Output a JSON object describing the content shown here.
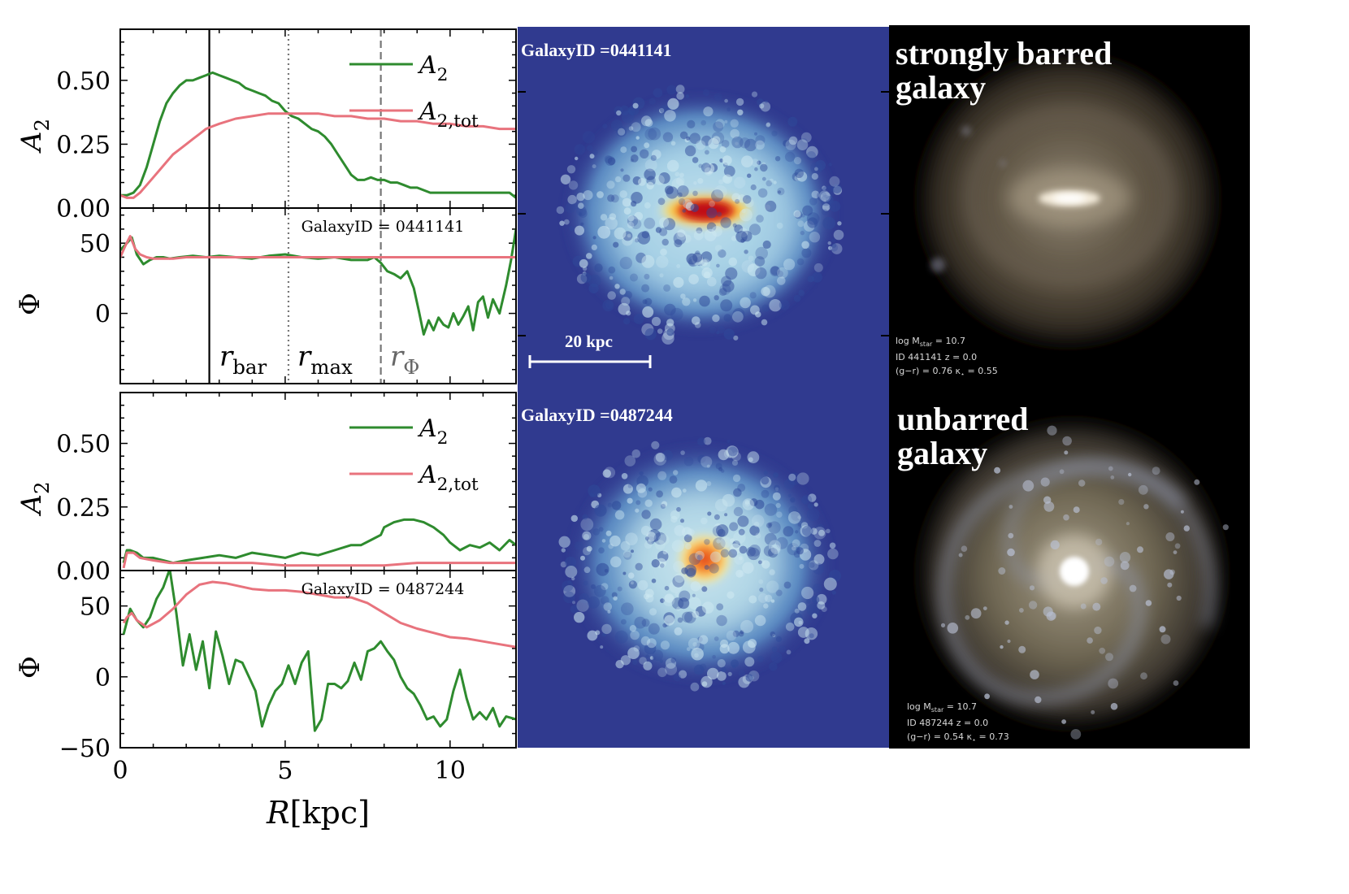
{
  "chart_data": [
    {
      "type": "line",
      "panel": "top galaxy, A2 vs R",
      "xlabel": "R[kpc]",
      "ylabel": "A_2",
      "xlim": [
        0,
        12
      ],
      "ylim": [
        0,
        0.7
      ],
      "yticks": [
        "0.00",
        "0.25",
        "0.50"
      ],
      "legend": "top-right",
      "series": [
        {
          "name": "A_2",
          "color": "#2e8b2e",
          "x": [
            0,
            0.2,
            0.4,
            0.6,
            0.8,
            1.0,
            1.2,
            1.4,
            1.6,
            1.8,
            2.0,
            2.2,
            2.4,
            2.6,
            2.8,
            3.0,
            3.2,
            3.4,
            3.6,
            3.8,
            4.0,
            4.2,
            4.4,
            4.6,
            4.8,
            5.0,
            5.2,
            5.4,
            5.6,
            5.8,
            6.0,
            6.2,
            6.4,
            6.6,
            6.8,
            7.0,
            7.2,
            7.4,
            7.6,
            7.8,
            8.0,
            8.2,
            8.4,
            8.6,
            8.8,
            9.0,
            9.2,
            9.4,
            9.6,
            9.8,
            10.0,
            10.2,
            10.4,
            10.6,
            10.8,
            11.0,
            11.2,
            11.4,
            11.6,
            11.8,
            12.0
          ],
          "y": [
            0.05,
            0.05,
            0.06,
            0.09,
            0.16,
            0.25,
            0.34,
            0.41,
            0.45,
            0.48,
            0.5,
            0.5,
            0.51,
            0.52,
            0.53,
            0.52,
            0.51,
            0.5,
            0.49,
            0.47,
            0.46,
            0.45,
            0.44,
            0.42,
            0.41,
            0.38,
            0.36,
            0.35,
            0.33,
            0.31,
            0.3,
            0.28,
            0.25,
            0.21,
            0.17,
            0.13,
            0.11,
            0.11,
            0.12,
            0.11,
            0.11,
            0.1,
            0.1,
            0.09,
            0.08,
            0.08,
            0.07,
            0.06,
            0.06,
            0.06,
            0.06,
            0.06,
            0.06,
            0.06,
            0.06,
            0.06,
            0.06,
            0.06,
            0.06,
            0.06,
            0.04
          ]
        },
        {
          "name": "A_{2,tot}",
          "color": "#e8737d",
          "x": [
            0,
            0.2,
            0.4,
            0.6,
            0.8,
            1.0,
            1.2,
            1.4,
            1.6,
            1.8,
            2.0,
            2.2,
            2.4,
            2.6,
            2.8,
            3.0,
            3.5,
            4.0,
            4.5,
            5.0,
            5.5,
            6.0,
            6.5,
            7.0,
            7.5,
            8.0,
            8.5,
            9.0,
            9.5,
            10.0,
            10.5,
            11.0,
            11.5,
            12.0
          ],
          "y": [
            0.05,
            0.04,
            0.04,
            0.06,
            0.09,
            0.12,
            0.15,
            0.18,
            0.21,
            0.23,
            0.25,
            0.27,
            0.29,
            0.31,
            0.32,
            0.33,
            0.35,
            0.36,
            0.37,
            0.37,
            0.37,
            0.37,
            0.36,
            0.36,
            0.35,
            0.35,
            0.34,
            0.34,
            0.33,
            0.33,
            0.32,
            0.32,
            0.31,
            0.31
          ]
        }
      ],
      "vlines": [
        {
          "x": 2.7,
          "style": "solid",
          "color": "#000000",
          "label": "r_bar"
        },
        {
          "x": 5.1,
          "style": "dotted",
          "color": "#777777",
          "label": "r_max"
        },
        {
          "x": 7.9,
          "style": "dashed",
          "color": "#777777",
          "label": "r_Φ"
        }
      ]
    },
    {
      "type": "line",
      "panel": "top galaxy, Phi vs R",
      "xlabel": "R[kpc]",
      "ylabel": "Φ",
      "xlim": [
        0,
        12
      ],
      "ylim": [
        -50,
        75
      ],
      "yticks": [
        "0",
        "50"
      ],
      "annotation": "GalaxyID = 0441141",
      "series": [
        {
          "name": "A_2",
          "color": "#2e8b2e",
          "x": [
            0,
            0.2,
            0.35,
            0.5,
            0.7,
            0.9,
            1.1,
            1.3,
            1.5,
            1.8,
            2.2,
            2.6,
            3.0,
            3.5,
            4.0,
            4.5,
            5.0,
            5.5,
            6.0,
            6.5,
            7.0,
            7.5,
            7.7,
            7.9,
            8.1,
            8.3,
            8.5,
            8.7,
            8.9,
            9.05,
            9.2,
            9.35,
            9.5,
            9.65,
            9.8,
            9.95,
            10.1,
            10.25,
            10.4,
            10.55,
            10.7,
            10.85,
            11.0,
            11.15,
            11.3,
            11.5,
            11.7,
            11.85,
            12.0
          ],
          "y": [
            45,
            50,
            54,
            42,
            35,
            38,
            40,
            40,
            39,
            40,
            41,
            40,
            41,
            40,
            39,
            41,
            42,
            40,
            39,
            40,
            38,
            38,
            40,
            36,
            30,
            28,
            25,
            30,
            18,
            2,
            -15,
            -5,
            -12,
            -3,
            -8,
            -10,
            0,
            -8,
            -2,
            5,
            -12,
            8,
            12,
            -3,
            10,
            0,
            20,
            38,
            60
          ]
        },
        {
          "name": "A_{2,tot}",
          "color": "#e8737d",
          "x": [
            0,
            0.15,
            0.3,
            0.45,
            0.6,
            0.8,
            1.0,
            1.3,
            1.6,
            2.0,
            3.0,
            4.0,
            5.0,
            6.0,
            7.0,
            8.0,
            9.0,
            10.0,
            11.0,
            12.0
          ],
          "y": [
            40,
            48,
            55,
            46,
            42,
            40,
            39,
            39,
            39,
            40,
            40,
            40,
            40,
            40,
            40,
            40,
            40,
            40,
            40,
            40
          ]
        }
      ],
      "vlines": [
        {
          "x": 2.7,
          "style": "solid",
          "color": "#000000",
          "label": "r_bar"
        },
        {
          "x": 5.1,
          "style": "dotted",
          "color": "#777777",
          "label": "r_max"
        },
        {
          "x": 7.9,
          "style": "dashed",
          "color": "#777777",
          "label": "r_Φ"
        }
      ]
    },
    {
      "type": "line",
      "panel": "bottom galaxy, A2 vs R",
      "xlabel": "R[kpc]",
      "ylabel": "A_2",
      "xlim": [
        0,
        12
      ],
      "ylim": [
        0,
        0.7
      ],
      "yticks": [
        "0.00",
        "0.25",
        "0.50"
      ],
      "legend": "top-right",
      "series": [
        {
          "name": "A_2",
          "color": "#2e8b2e",
          "x": [
            0.1,
            0.2,
            0.3,
            0.5,
            0.7,
            1.0,
            1.3,
            1.6,
            2.0,
            2.5,
            3.0,
            3.5,
            4.0,
            4.5,
            5.0,
            5.5,
            6.0,
            6.5,
            7.0,
            7.3,
            7.6,
            7.9,
            8.0,
            8.3,
            8.6,
            8.9,
            9.2,
            9.5,
            9.8,
            10.0,
            10.3,
            10.6,
            10.9,
            11.2,
            11.5,
            11.8,
            12.0
          ],
          "y": [
            0.03,
            0.08,
            0.08,
            0.07,
            0.05,
            0.05,
            0.04,
            0.03,
            0.04,
            0.05,
            0.06,
            0.05,
            0.07,
            0.06,
            0.05,
            0.07,
            0.06,
            0.08,
            0.1,
            0.1,
            0.12,
            0.14,
            0.17,
            0.19,
            0.2,
            0.2,
            0.19,
            0.17,
            0.14,
            0.11,
            0.08,
            0.1,
            0.09,
            0.11,
            0.08,
            0.12,
            0.1
          ]
        },
        {
          "name": "A_{2,tot}",
          "color": "#e8737d",
          "x": [
            0.1,
            0.2,
            0.4,
            0.6,
            1.0,
            1.5,
            2.0,
            3.0,
            4.0,
            5.0,
            6.0,
            7.0,
            8.0,
            9.0,
            10.0,
            11.0,
            12.0
          ],
          "y": [
            0.01,
            0.07,
            0.07,
            0.05,
            0.04,
            0.03,
            0.03,
            0.03,
            0.03,
            0.02,
            0.02,
            0.02,
            0.02,
            0.03,
            0.03,
            0.03,
            0.03
          ]
        }
      ]
    },
    {
      "type": "line",
      "panel": "bottom galaxy, Phi vs R",
      "xlabel": "R[kpc]",
      "ylabel": "Φ",
      "xlim": [
        0,
        12
      ],
      "ylim": [
        -50,
        75
      ],
      "yticks": [
        "−50",
        "0",
        "50"
      ],
      "xticks": [
        "0",
        "5",
        "10"
      ],
      "annotation": "GalaxyID = 0487244",
      "series": [
        {
          "name": "A_2",
          "color": "#2e8b2e",
          "x": [
            0.1,
            0.3,
            0.5,
            0.7,
            0.9,
            1.1,
            1.3,
            1.5,
            1.7,
            1.9,
            2.1,
            2.3,
            2.5,
            2.7,
            2.9,
            3.1,
            3.3,
            3.5,
            3.7,
            3.9,
            4.1,
            4.3,
            4.5,
            4.7,
            4.9,
            5.1,
            5.3,
            5.5,
            5.7,
            5.9,
            6.1,
            6.3,
            6.5,
            6.7,
            6.9,
            7.1,
            7.3,
            7.5,
            7.7,
            7.9,
            8.1,
            8.3,
            8.5,
            8.7,
            8.9,
            9.1,
            9.3,
            9.5,
            9.7,
            9.9,
            10.1,
            10.3,
            10.5,
            10.7,
            10.9,
            11.1,
            11.3,
            11.5,
            11.7,
            12.0
          ],
          "y": [
            30,
            48,
            40,
            35,
            42,
            55,
            63,
            76,
            45,
            8,
            30,
            5,
            25,
            -8,
            32,
            15,
            -5,
            12,
            10,
            0,
            -10,
            -35,
            -20,
            -10,
            -5,
            8,
            -5,
            10,
            18,
            -38,
            -30,
            -5,
            -5,
            -8,
            -3,
            10,
            -2,
            18,
            20,
            25,
            18,
            12,
            0,
            -8,
            -12,
            -20,
            -30,
            -28,
            -35,
            -30,
            -10,
            5,
            -15,
            -30,
            -25,
            -30,
            -22,
            -35,
            -28,
            -30
          ]
        },
        {
          "name": "A_{2,tot}",
          "color": "#e8737d",
          "x": [
            0.1,
            0.2,
            0.35,
            0.5,
            0.8,
            1.2,
            1.6,
            2.0,
            2.4,
            2.8,
            3.2,
            3.6,
            4.0,
            4.5,
            5.0,
            5.5,
            6.0,
            6.5,
            7.0,
            7.5,
            8.0,
            8.5,
            9.0,
            9.5,
            10.0,
            10.5,
            11.0,
            11.5,
            12.0
          ],
          "y": [
            38,
            42,
            45,
            40,
            35,
            40,
            48,
            58,
            65,
            67,
            66,
            64,
            62,
            61,
            61,
            60,
            58,
            56,
            56,
            52,
            45,
            38,
            34,
            31,
            28,
            27,
            25,
            23,
            21
          ]
        }
      ]
    }
  ],
  "labels": {
    "r_bar": {
      "main": "r",
      "sub": "bar"
    },
    "r_max": {
      "main": "r",
      "sub": "max"
    },
    "r_phi": {
      "main": "r",
      "sub": "Φ"
    },
    "legend_a2": {
      "main": "A",
      "sub": "2"
    },
    "legend_a2tot": {
      "main": "A",
      "sub": "2,tot"
    },
    "ylabel_a2": {
      "main": "A",
      "sub": "2"
    },
    "ylabel_phi": "Φ",
    "xlabel": {
      "main": "R",
      "rest": "[kpc]"
    },
    "xticks": [
      "0",
      "5",
      "10"
    ]
  },
  "density_maps": {
    "top": {
      "title": "GalaxyID =0441141",
      "scalebar": "20 kpc"
    },
    "bottom": {
      "title": "GalaxyID =0487244"
    }
  },
  "renders": {
    "top": {
      "caption": [
        "strongly barred",
        "galaxy"
      ],
      "info": [
        "log M",
        "star",
        " = 10.7",
        "ID 441141 z = 0.0",
        "(g−r) = 0.76 κ",
        "⋆",
        " = 0.55"
      ]
    },
    "bottom": {
      "caption": [
        "unbarred",
        "galaxy"
      ],
      "info": [
        "log M",
        "star",
        " = 10.7",
        "ID 487244 z = 0.0",
        "(g−r) = 0.54 κ",
        "⋆",
        " = 0.73"
      ]
    }
  },
  "colors": {
    "green": "#2e8b2e",
    "pink": "#e8737d",
    "map_bg": "#303a8f",
    "render_bg": "#000000"
  }
}
